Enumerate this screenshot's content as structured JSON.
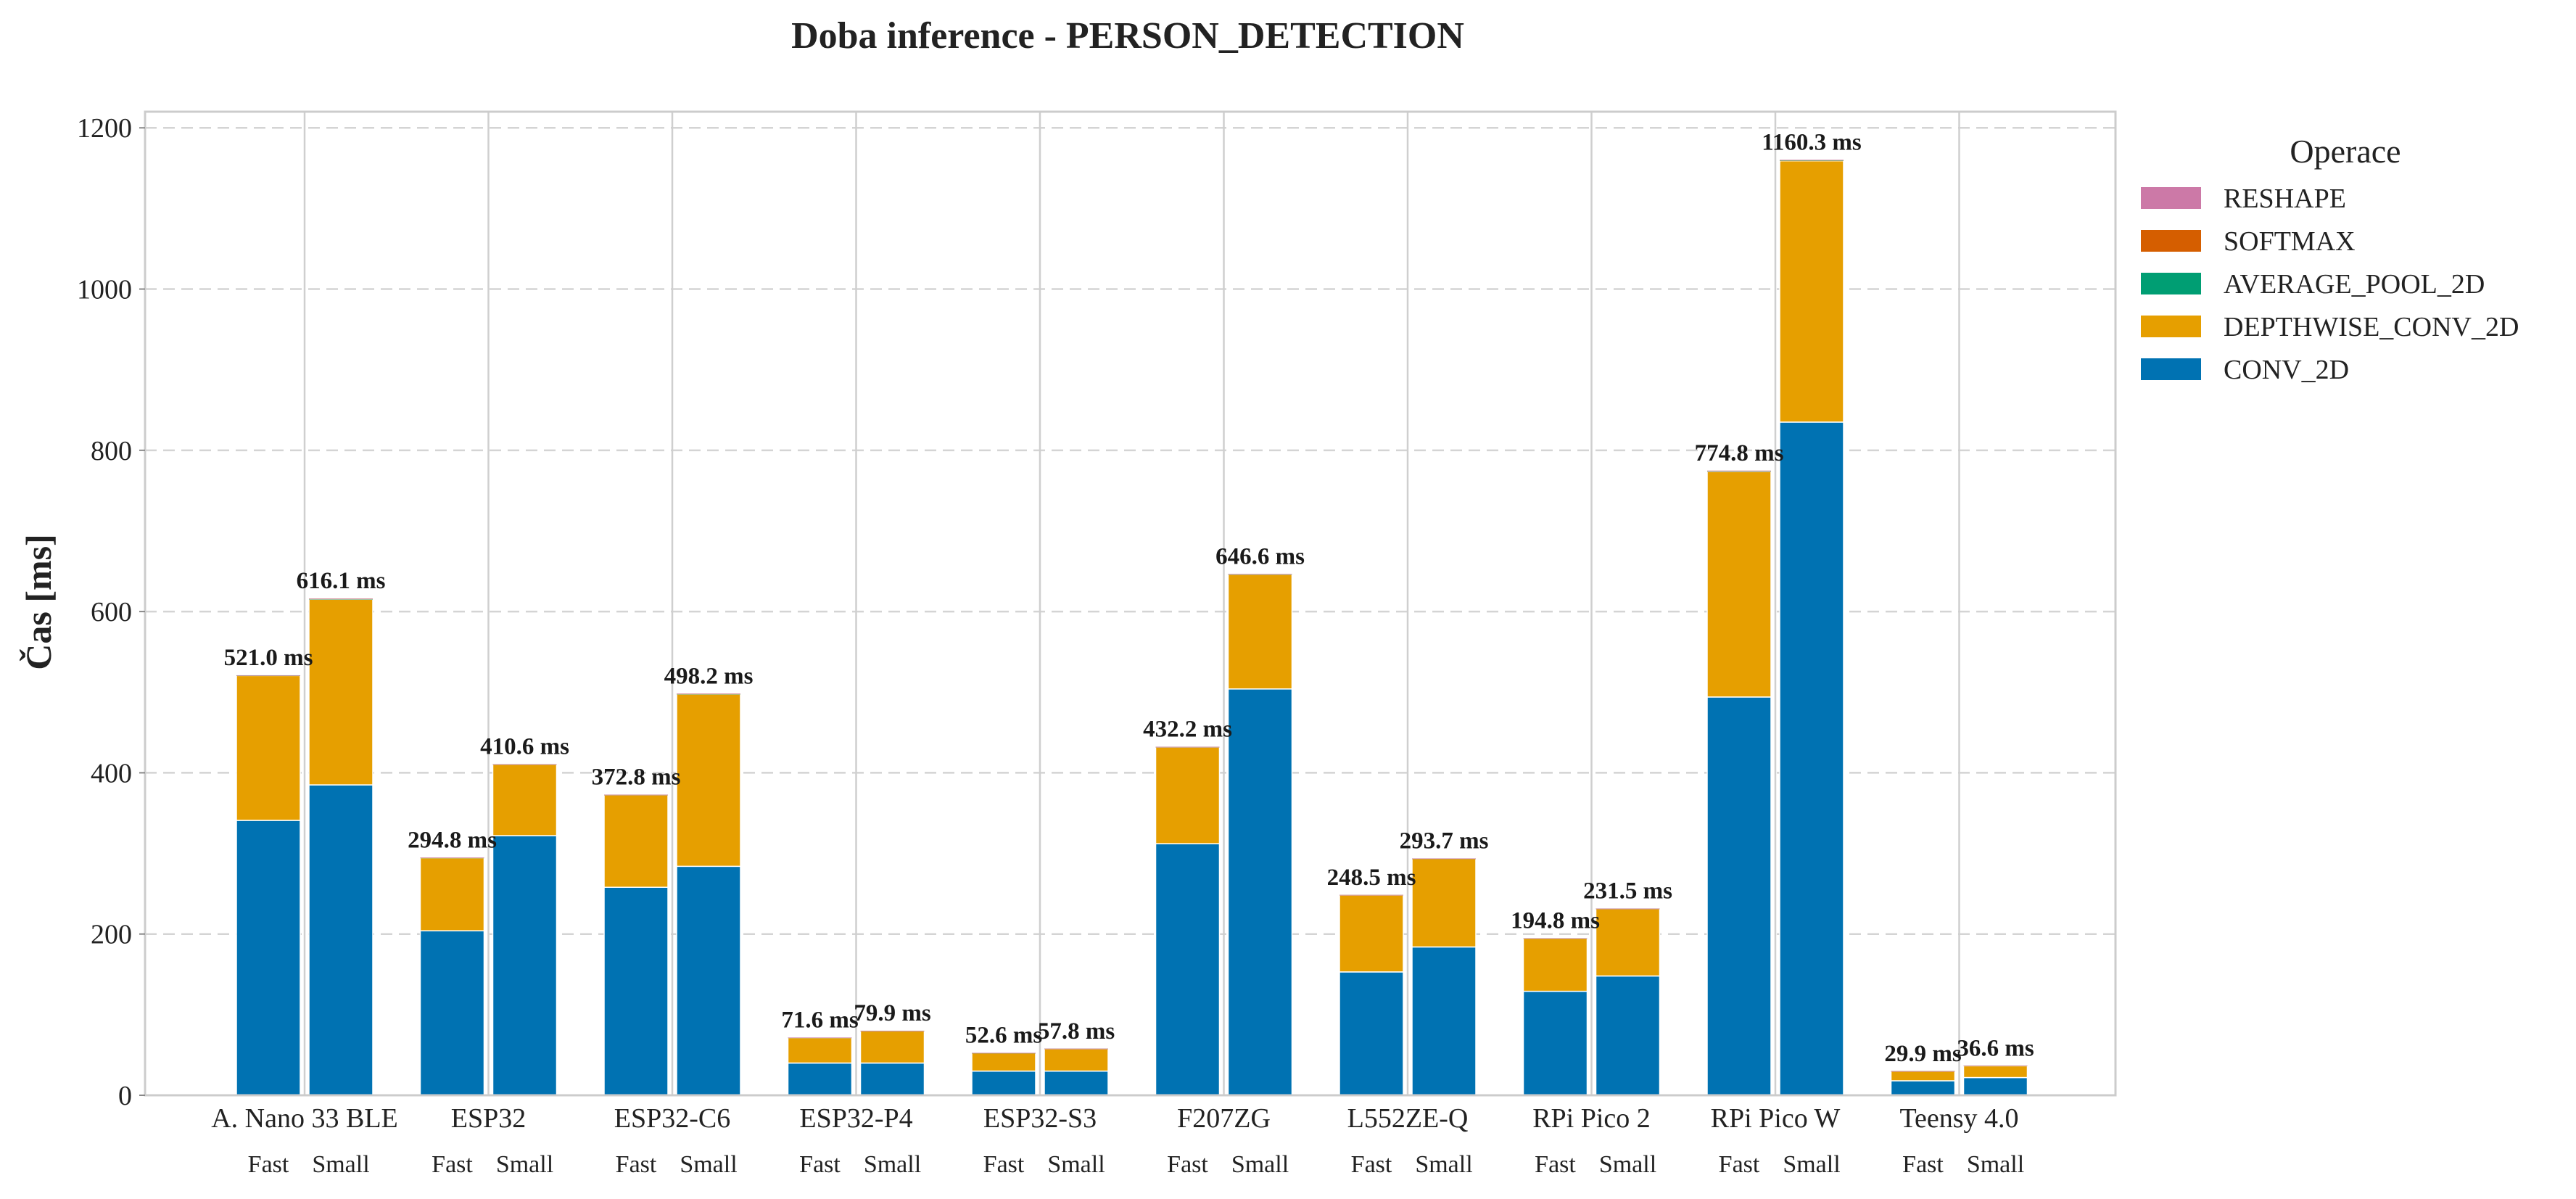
{
  "chart_data": {
    "type": "bar",
    "stacked": true,
    "title": "Doba inference - PERSON_DETECTION",
    "xlabel": "",
    "ylabel": "Čas [ms]",
    "ylim": [
      0,
      1220
    ],
    "yticks": [
      0,
      200,
      400,
      600,
      800,
      1000,
      1200
    ],
    "grid": "horizontal dashed",
    "legend": {
      "title": "Operace",
      "placement": "right"
    },
    "categories": [
      "A. Nano 33 BLE",
      "ESP32",
      "ESP32-C6",
      "ESP32-P4",
      "ESP32-S3",
      "F207ZG",
      "L552ZE-Q",
      "RPi Pico 2",
      "RPi Pico W",
      "Teensy 4.0"
    ],
    "variants": [
      "Fast",
      "Small"
    ],
    "series": [
      {
        "name": "CONV_2D",
        "color": "#0072B2",
        "values": [
          [
            341,
            385
          ],
          [
            204,
            322
          ],
          [
            258,
            284
          ],
          [
            40,
            40
          ],
          [
            30,
            30
          ],
          [
            312,
            504
          ],
          [
            153,
            184
          ],
          [
            129,
            148
          ],
          [
            494,
            835
          ],
          [
            18,
            22
          ]
        ]
      },
      {
        "name": "DEPTHWISE_CONV_2D",
        "color": "#E69F00",
        "values": [
          [
            179.6,
            230.2
          ],
          [
            90.5,
            88.3
          ],
          [
            114.5,
            213.6
          ],
          [
            31.4,
            39.7
          ],
          [
            22.4,
            27.6
          ],
          [
            119.8,
            142.1
          ],
          [
            95.3,
            109.5
          ],
          [
            65.6,
            83.3
          ],
          [
            279.6,
            324.1
          ],
          [
            11.8,
            14.5
          ]
        ]
      },
      {
        "name": "AVERAGE_POOL_2D",
        "color": "#009E73",
        "values": [
          [
            0.2,
            0.3
          ],
          [
            0.1,
            0.1
          ],
          [
            0.1,
            0.2
          ],
          [
            0.1,
            0.1
          ],
          [
            0.1,
            0.1
          ],
          [
            0.2,
            0.2
          ],
          [
            0.1,
            0.1
          ],
          [
            0.1,
            0.1
          ],
          [
            0.5,
            0.6
          ],
          [
            0.05,
            0.05
          ]
        ]
      },
      {
        "name": "SOFTMAX",
        "color": "#D55E00",
        "values": [
          [
            0.1,
            0.3
          ],
          [
            0.1,
            0.1
          ],
          [
            0.1,
            0.2
          ],
          [
            0.05,
            0.05
          ],
          [
            0.05,
            0.05
          ],
          [
            0.1,
            0.2
          ],
          [
            0.05,
            0.05
          ],
          [
            0.05,
            0.05
          ],
          [
            0.4,
            0.3
          ],
          [
            0.03,
            0.03
          ]
        ]
      },
      {
        "name": "RESHAPE",
        "color": "#CC79A7",
        "values": [
          [
            0.1,
            0.3
          ],
          [
            0.1,
            0.1
          ],
          [
            0.1,
            0.2
          ],
          [
            0.05,
            0.05
          ],
          [
            0.05,
            0.05
          ],
          [
            0.1,
            0.1
          ],
          [
            0.05,
            0.05
          ],
          [
            0.05,
            0.05
          ],
          [
            0.3,
            0.3
          ],
          [
            0.02,
            0.02
          ]
        ]
      }
    ],
    "totals": [
      [
        521.0,
        616.1
      ],
      [
        294.8,
        410.6
      ],
      [
        372.8,
        498.2
      ],
      [
        71.6,
        79.9
      ],
      [
        52.6,
        57.8
      ],
      [
        432.2,
        646.6
      ],
      [
        248.5,
        293.7
      ],
      [
        194.8,
        231.5
      ],
      [
        774.8,
        1160.3
      ],
      [
        29.9,
        36.6
      ]
    ],
    "total_labels": [
      [
        "521.0 ms",
        "616.1 ms"
      ],
      [
        "294.8 ms",
        "410.6 ms"
      ],
      [
        "372.8 ms",
        "498.2 ms"
      ],
      [
        "71.6 ms",
        "79.9 ms"
      ],
      [
        "52.6 ms",
        "57.8 ms"
      ],
      [
        "432.2 ms",
        "646.6 ms"
      ],
      [
        "248.5 ms",
        "293.7 ms"
      ],
      [
        "194.8 ms",
        "231.5 ms"
      ],
      [
        "774.8 ms",
        "1160.3 ms"
      ],
      [
        "29.9 ms",
        "36.6 ms"
      ]
    ],
    "legend_order": [
      "RESHAPE",
      "SOFTMAX",
      "AVERAGE_POOL_2D",
      "DEPTHWISE_CONV_2D",
      "CONV_2D"
    ]
  }
}
